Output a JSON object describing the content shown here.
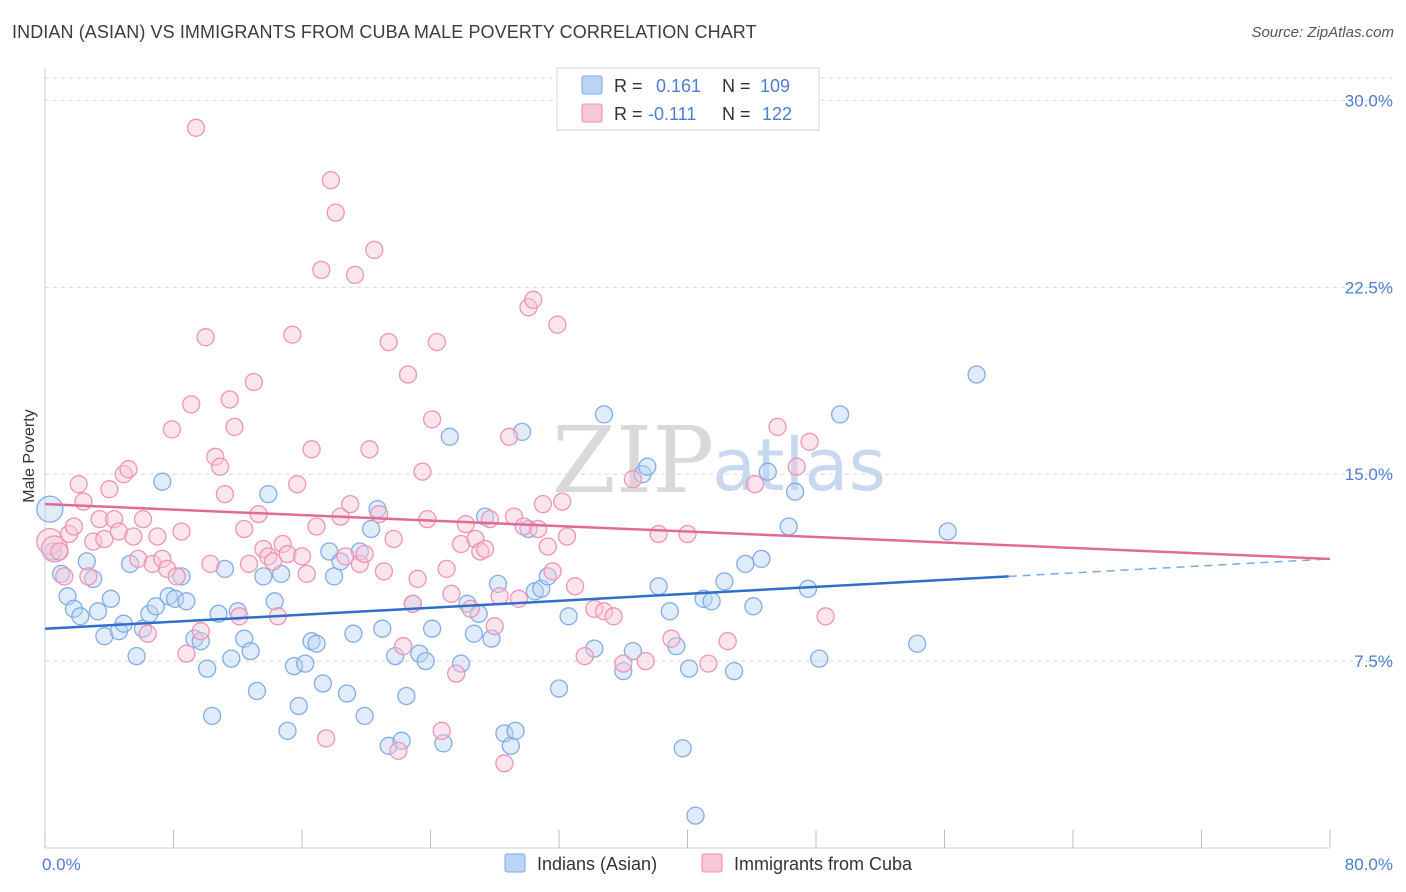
{
  "title": "INDIAN (ASIAN) VS IMMIGRANTS FROM CUBA MALE POVERTY CORRELATION CHART",
  "source": "Source: ZipAtlas.com",
  "watermark": {
    "zip": "ZIP",
    "atlas": "atlas"
  },
  "legend_top": [
    {
      "r_label": "R =",
      "r_value": "0.161",
      "n_label": "N =",
      "n_value": "109"
    },
    {
      "r_label": "R =",
      "r_value": "-0.111",
      "n_label": "N =",
      "n_value": "122"
    }
  ],
  "chart_data": {
    "type": "scatter",
    "ylabel": "Male Poverty",
    "xlim": [
      0,
      80
    ],
    "ylim": [
      0,
      30.9
    ],
    "x_tick_labels": [
      "0.0%",
      "80.0%"
    ],
    "y_ticks": [
      7.5,
      15.0,
      22.5,
      30.0
    ],
    "y_tick_labels": [
      "7.5%",
      "15.0%",
      "22.5%",
      "30.0%"
    ],
    "grid": true,
    "legend_position": "bottom-center",
    "series": [
      {
        "name": "Indians (Asian)",
        "color": "#7aaae8",
        "fill": "#bcd4f3",
        "trend": {
          "x0": 0,
          "y0": 8.8,
          "x1": 60,
          "y1": 10.9,
          "dash_x1": 80,
          "dash_y1": 11.6
        },
        "points": [
          [
            0.3,
            13.6
          ],
          [
            0.5,
            11.9
          ],
          [
            1.0,
            11.0
          ],
          [
            1.4,
            10.1
          ],
          [
            1.8,
            9.6
          ],
          [
            2.2,
            9.3
          ],
          [
            2.6,
            11.5
          ],
          [
            3.0,
            10.8
          ],
          [
            3.3,
            9.5
          ],
          [
            3.7,
            8.5
          ],
          [
            4.1,
            10.0
          ],
          [
            4.6,
            8.7
          ],
          [
            4.9,
            9.0
          ],
          [
            5.3,
            11.4
          ],
          [
            5.7,
            7.7
          ],
          [
            6.1,
            8.8
          ],
          [
            6.5,
            9.4
          ],
          [
            6.9,
            9.7
          ],
          [
            7.3,
            14.7
          ],
          [
            7.7,
            10.1
          ],
          [
            8.1,
            10.0
          ],
          [
            8.5,
            10.9
          ],
          [
            8.8,
            9.9
          ],
          [
            9.3,
            8.4
          ],
          [
            9.7,
            8.3
          ],
          [
            10.1,
            7.2
          ],
          [
            10.4,
            5.3
          ],
          [
            10.8,
            9.4
          ],
          [
            11.2,
            11.2
          ],
          [
            11.6,
            7.6
          ],
          [
            12.0,
            9.5
          ],
          [
            12.4,
            8.4
          ],
          [
            12.8,
            7.9
          ],
          [
            13.2,
            6.3
          ],
          [
            13.6,
            10.9
          ],
          [
            13.9,
            14.2
          ],
          [
            14.3,
            9.9
          ],
          [
            14.7,
            11.0
          ],
          [
            15.1,
            4.7
          ],
          [
            15.5,
            7.3
          ],
          [
            15.8,
            5.7
          ],
          [
            16.2,
            7.4
          ],
          [
            16.6,
            8.3
          ],
          [
            16.9,
            8.2
          ],
          [
            17.3,
            6.6
          ],
          [
            17.7,
            11.9
          ],
          [
            18.0,
            10.9
          ],
          [
            18.4,
            11.5
          ],
          [
            18.8,
            6.2
          ],
          [
            19.2,
            8.6
          ],
          [
            19.6,
            11.9
          ],
          [
            19.9,
            5.3
          ],
          [
            20.3,
            12.8
          ],
          [
            20.7,
            13.6
          ],
          [
            21.0,
            8.8
          ],
          [
            21.4,
            4.1
          ],
          [
            21.8,
            7.7
          ],
          [
            22.2,
            4.3
          ],
          [
            22.5,
            6.1
          ],
          [
            22.9,
            9.8
          ],
          [
            23.3,
            7.8
          ],
          [
            23.7,
            7.5
          ],
          [
            24.1,
            8.8
          ],
          [
            24.8,
            4.2
          ],
          [
            25.2,
            16.5
          ],
          [
            25.9,
            7.4
          ],
          [
            26.3,
            9.8
          ],
          [
            26.7,
            8.6
          ],
          [
            27.0,
            9.4
          ],
          [
            27.4,
            13.3
          ],
          [
            27.8,
            8.4
          ],
          [
            28.2,
            10.6
          ],
          [
            28.6,
            4.6
          ],
          [
            29.0,
            4.1
          ],
          [
            29.3,
            4.7
          ],
          [
            29.7,
            16.7
          ],
          [
            30.1,
            12.8
          ],
          [
            30.5,
            10.3
          ],
          [
            30.9,
            10.4
          ],
          [
            31.3,
            10.9
          ],
          [
            32.0,
            6.4
          ],
          [
            32.6,
            9.3
          ],
          [
            34.2,
            8.0
          ],
          [
            34.8,
            17.4
          ],
          [
            36.0,
            7.1
          ],
          [
            36.6,
            7.9
          ],
          [
            37.2,
            15.0
          ],
          [
            37.5,
            15.3
          ],
          [
            38.2,
            10.5
          ],
          [
            38.9,
            9.5
          ],
          [
            39.3,
            8.1
          ],
          [
            39.7,
            4.0
          ],
          [
            40.1,
            7.2
          ],
          [
            40.5,
            1.3
          ],
          [
            41.0,
            10.0
          ],
          [
            41.5,
            9.9
          ],
          [
            42.3,
            10.7
          ],
          [
            42.9,
            7.1
          ],
          [
            43.6,
            11.4
          ],
          [
            44.1,
            9.7
          ],
          [
            44.6,
            11.6
          ],
          [
            45.0,
            15.1
          ],
          [
            46.3,
            12.9
          ],
          [
            46.7,
            14.3
          ],
          [
            47.5,
            10.4
          ],
          [
            48.2,
            7.6
          ],
          [
            49.5,
            17.4
          ],
          [
            54.3,
            8.2
          ],
          [
            56.2,
            12.7
          ],
          [
            58.0,
            19.0
          ]
        ]
      },
      {
        "name": "Immigrants from Cuba",
        "color": "#ef8fb0",
        "fill": "#f7c6d7",
        "trend": {
          "x0": 0,
          "y0": 13.8,
          "x1": 80,
          "y1": 11.6
        },
        "points": [
          [
            0.3,
            12.3
          ],
          [
            0.6,
            12.0
          ],
          [
            0.9,
            11.9
          ],
          [
            1.2,
            10.9
          ],
          [
            1.5,
            12.6
          ],
          [
            1.8,
            12.9
          ],
          [
            2.1,
            14.6
          ],
          [
            2.4,
            13.9
          ],
          [
            2.7,
            10.9
          ],
          [
            3.0,
            12.3
          ],
          [
            3.4,
            13.2
          ],
          [
            3.7,
            12.4
          ],
          [
            4.0,
            14.4
          ],
          [
            4.3,
            13.2
          ],
          [
            4.6,
            12.7
          ],
          [
            4.9,
            15.0
          ],
          [
            5.2,
            15.2
          ],
          [
            5.5,
            12.5
          ],
          [
            5.8,
            11.6
          ],
          [
            6.1,
            13.2
          ],
          [
            6.4,
            8.6
          ],
          [
            6.7,
            11.4
          ],
          [
            7.0,
            12.5
          ],
          [
            7.3,
            11.6
          ],
          [
            7.6,
            11.2
          ],
          [
            7.9,
            16.8
          ],
          [
            8.2,
            10.9
          ],
          [
            8.5,
            12.7
          ],
          [
            8.8,
            7.8
          ],
          [
            9.1,
            17.8
          ],
          [
            9.4,
            28.9
          ],
          [
            9.7,
            8.7
          ],
          [
            10.0,
            20.5
          ],
          [
            10.3,
            11.4
          ],
          [
            10.6,
            15.7
          ],
          [
            10.9,
            15.3
          ],
          [
            11.2,
            14.2
          ],
          [
            11.5,
            18.0
          ],
          [
            11.8,
            16.9
          ],
          [
            12.1,
            9.3
          ],
          [
            12.4,
            12.8
          ],
          [
            12.7,
            11.4
          ],
          [
            13.0,
            18.7
          ],
          [
            13.3,
            13.4
          ],
          [
            13.6,
            12.0
          ],
          [
            13.9,
            11.7
          ],
          [
            14.2,
            11.5
          ],
          [
            14.5,
            9.3
          ],
          [
            14.8,
            12.2
          ],
          [
            15.1,
            11.8
          ],
          [
            15.4,
            20.6
          ],
          [
            15.7,
            14.6
          ],
          [
            16.0,
            11.7
          ],
          [
            16.3,
            11.0
          ],
          [
            16.6,
            16.0
          ],
          [
            16.9,
            12.9
          ],
          [
            17.2,
            23.2
          ],
          [
            17.5,
            4.4
          ],
          [
            17.8,
            26.8
          ],
          [
            18.1,
            25.5
          ],
          [
            18.4,
            13.3
          ],
          [
            18.7,
            11.7
          ],
          [
            19.0,
            13.8
          ],
          [
            19.3,
            23.0
          ],
          [
            19.6,
            11.4
          ],
          [
            19.9,
            11.8
          ],
          [
            20.2,
            16.0
          ],
          [
            20.5,
            24.0
          ],
          [
            20.8,
            13.4
          ],
          [
            21.1,
            11.1
          ],
          [
            21.4,
            20.3
          ],
          [
            21.7,
            12.4
          ],
          [
            22.0,
            3.9
          ],
          [
            22.3,
            8.1
          ],
          [
            22.6,
            19.0
          ],
          [
            22.9,
            9.8
          ],
          [
            23.2,
            10.8
          ],
          [
            23.5,
            15.1
          ],
          [
            23.8,
            13.2
          ],
          [
            24.1,
            17.2
          ],
          [
            24.4,
            20.3
          ],
          [
            24.7,
            4.7
          ],
          [
            25.0,
            11.2
          ],
          [
            25.3,
            10.2
          ],
          [
            25.6,
            7.0
          ],
          [
            25.9,
            12.2
          ],
          [
            26.2,
            13.0
          ],
          [
            26.5,
            9.6
          ],
          [
            26.8,
            12.4
          ],
          [
            27.1,
            11.9
          ],
          [
            27.4,
            12.0
          ],
          [
            27.7,
            13.2
          ],
          [
            28.0,
            8.9
          ],
          [
            28.3,
            10.1
          ],
          [
            28.6,
            3.4
          ],
          [
            28.9,
            16.5
          ],
          [
            29.2,
            13.3
          ],
          [
            29.5,
            10.0
          ],
          [
            29.8,
            12.9
          ],
          [
            30.1,
            21.7
          ],
          [
            30.4,
            22.0
          ],
          [
            30.7,
            12.8
          ],
          [
            31.0,
            13.8
          ],
          [
            31.3,
            12.1
          ],
          [
            31.6,
            11.1
          ],
          [
            31.9,
            21.0
          ],
          [
            32.2,
            13.9
          ],
          [
            32.5,
            12.5
          ],
          [
            33.0,
            10.5
          ],
          [
            33.6,
            7.7
          ],
          [
            34.2,
            9.6
          ],
          [
            34.8,
            9.5
          ],
          [
            35.4,
            9.3
          ],
          [
            36.0,
            7.4
          ],
          [
            36.6,
            14.8
          ],
          [
            37.4,
            7.5
          ],
          [
            38.2,
            12.6
          ],
          [
            39.0,
            8.4
          ],
          [
            40.0,
            12.6
          ],
          [
            41.3,
            7.4
          ],
          [
            42.5,
            8.3
          ],
          [
            44.2,
            14.6
          ],
          [
            45.6,
            16.9
          ],
          [
            46.8,
            15.3
          ],
          [
            47.6,
            16.3
          ],
          [
            48.6,
            9.3
          ]
        ]
      }
    ]
  }
}
